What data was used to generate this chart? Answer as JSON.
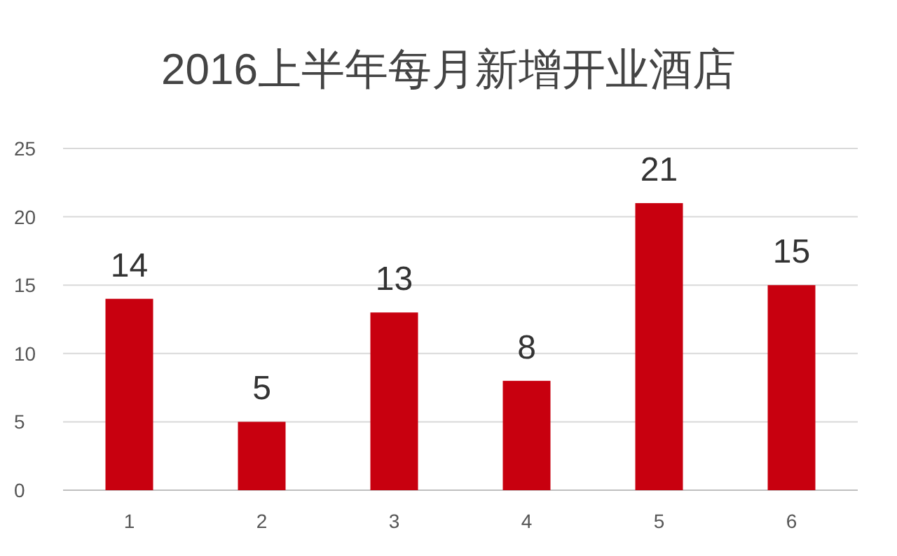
{
  "chart_data": {
    "type": "bar",
    "title": "2016上半年每月新增开业酒店",
    "categories": [
      "1",
      "2",
      "3",
      "4",
      "5",
      "6"
    ],
    "values": [
      14,
      5,
      13,
      8,
      21,
      15
    ],
    "color": "#c8000f",
    "ylim": [
      0,
      25
    ],
    "yticks": [
      0,
      5,
      10,
      15,
      20,
      25
    ],
    "grid": "y",
    "data_labels": true
  }
}
